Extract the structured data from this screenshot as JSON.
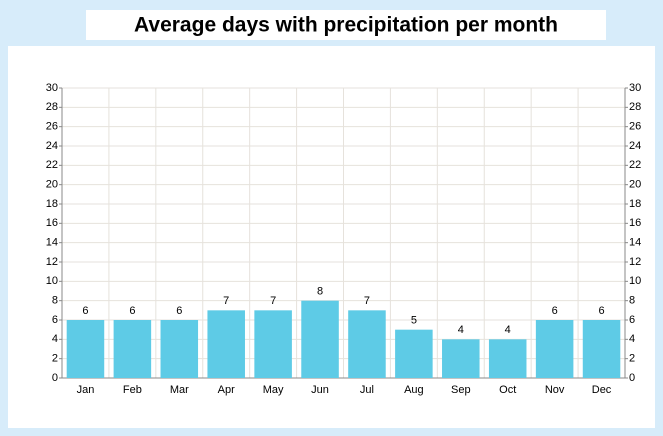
{
  "chart_data": {
    "type": "bar",
    "title": "Average days with precipitation per month",
    "categories": [
      "Jan",
      "Feb",
      "Mar",
      "Apr",
      "May",
      "Jun",
      "Jul",
      "Aug",
      "Sep",
      "Oct",
      "Nov",
      "Dec"
    ],
    "values": [
      6,
      6,
      6,
      7,
      7,
      8,
      7,
      5,
      4,
      4,
      6,
      6
    ],
    "color": "#5ecbe6",
    "ylim": [
      0,
      30
    ],
    "yticks": [
      0,
      2,
      4,
      6,
      8,
      10,
      12,
      14,
      16,
      18,
      20,
      22,
      24,
      26,
      28,
      30
    ],
    "y2lim": [
      0,
      30
    ],
    "y2ticks": [
      0,
      2,
      4,
      6,
      8,
      10,
      12,
      14,
      16,
      18,
      20,
      22,
      24,
      26,
      28,
      30
    ],
    "grid": true
  }
}
